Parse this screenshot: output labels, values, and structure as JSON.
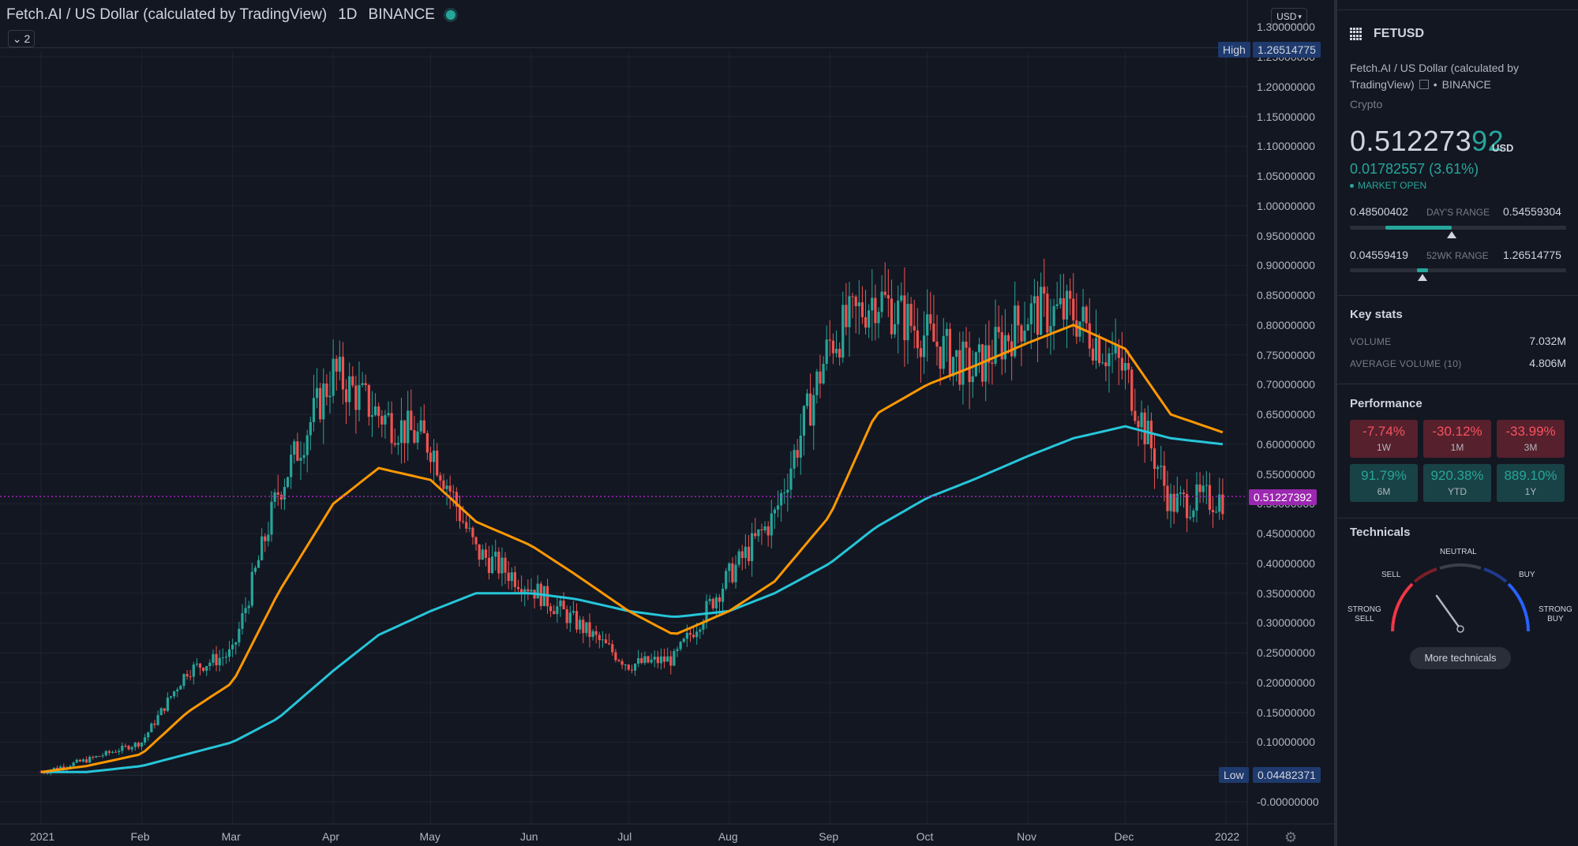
{
  "header": {
    "title": "Fetch.AI / US Dollar (calculated by TradingView)",
    "interval": "1D",
    "exchange": "BINANCE",
    "indicator_count": "2",
    "currency": "USD"
  },
  "price_axis": {
    "ticks": [
      "1.30000000",
      "1.25000000",
      "1.20000000",
      "1.15000000",
      "1.10000000",
      "1.05000000",
      "1.00000000",
      "0.95000000",
      "0.90000000",
      "0.85000000",
      "0.80000000",
      "0.75000000",
      "0.70000000",
      "0.65000000",
      "0.60000000",
      "0.55000000",
      "0.50000000",
      "0.45000000",
      "0.40000000",
      "0.35000000",
      "0.30000000",
      "0.25000000",
      "0.20000000",
      "0.15000000",
      "0.10000000",
      "0.05000000",
      "-0.00000000"
    ],
    "high_label": "High",
    "high_value": "1.26514775",
    "low_label": "Low",
    "low_value": "0.04482371",
    "last_value": "0.51227392"
  },
  "time_axis": {
    "ticks": [
      "2021",
      "Feb",
      "Mar",
      "Apr",
      "May",
      "Jun",
      "Jul",
      "Aug",
      "Sep",
      "Oct",
      "Nov",
      "Dec",
      "2022"
    ]
  },
  "colors": {
    "up": "#26a69a",
    "down": "#ef5350",
    "ma_fast": "#ff9800",
    "ma_slow": "#26c6da",
    "last_price": "#9c27b0"
  },
  "chart_data": {
    "type": "line",
    "title": "Fetch.AI / US Dollar (calculated by TradingView)",
    "x": [
      "2021-01-01",
      "2021-01-15",
      "2021-02-01",
      "2021-02-15",
      "2021-03-01",
      "2021-03-15",
      "2021-04-01",
      "2021-04-15",
      "2021-05-01",
      "2021-05-15",
      "2021-06-01",
      "2021-06-15",
      "2021-07-01",
      "2021-07-15",
      "2021-08-01",
      "2021-08-15",
      "2021-09-01",
      "2021-09-15",
      "2021-10-01",
      "2021-10-15",
      "2021-11-01",
      "2021-11-15",
      "2021-12-01",
      "2021-12-15",
      "2021-12-31"
    ],
    "ylim": [
      -0.05,
      1.3
    ],
    "series": [
      {
        "values": [
          0.05,
          0.07,
          0.1,
          0.22,
          0.25,
          0.52,
          0.72,
          0.65,
          0.6,
          0.42,
          0.36,
          0.3,
          0.23,
          0.24,
          0.38,
          0.48,
          0.77,
          0.85,
          0.78,
          0.72,
          0.82,
          0.82,
          0.72,
          0.5,
          0.51
        ]
      },
      {
        "values": [
          0.05,
          0.06,
          0.08,
          0.15,
          0.2,
          0.35,
          0.5,
          0.56,
          0.54,
          0.47,
          0.43,
          0.38,
          0.32,
          0.28,
          0.32,
          0.37,
          0.48,
          0.65,
          0.7,
          0.73,
          0.77,
          0.8,
          0.76,
          0.65,
          0.62
        ]
      },
      {
        "values": [
          0.05,
          0.05,
          0.06,
          0.08,
          0.1,
          0.14,
          0.22,
          0.28,
          0.32,
          0.35,
          0.35,
          0.34,
          0.32,
          0.31,
          0.32,
          0.35,
          0.4,
          0.46,
          0.51,
          0.54,
          0.58,
          0.61,
          0.63,
          0.61,
          0.6
        ]
      }
    ]
  },
  "panel": {
    "symbol": "FETUSD",
    "desc_line1": "Fetch.AI / US Dollar (calculated by",
    "desc_line2_a": "TradingView)",
    "desc_line2_b": "BINANCE",
    "asset_type": "Crypto",
    "price_head": "0.512273",
    "price_tail": "92",
    "price_unit": "USD",
    "change": "0.01782557 (3.61%)",
    "market_status": "MARKET OPEN",
    "day_range": {
      "low": "0.48500402",
      "title": "DAY'S RANGE",
      "high": "0.54559304",
      "position": 0.47
    },
    "wk_range": {
      "low": "0.04559419",
      "title": "52WK RANGE",
      "high": "1.26514775",
      "position": 0.39
    },
    "key_stats_title": "Key stats",
    "volume_label": "VOLUME",
    "volume_value": "7.032M",
    "avg_volume_label": "AVERAGE VOLUME (10)",
    "avg_volume_value": "4.806M",
    "performance_title": "Performance",
    "performance": [
      {
        "value": "-7.74%",
        "period": "1W"
      },
      {
        "value": "-30.12%",
        "period": "1M"
      },
      {
        "value": "-33.99%",
        "period": "3M"
      },
      {
        "value": "91.79%",
        "period": "6M"
      },
      {
        "value": "920.38%",
        "period": "YTD"
      },
      {
        "value": "889.10%",
        "period": "1Y"
      }
    ],
    "technicals_title": "Technicals",
    "gauge": {
      "neutral": "NEUTRAL",
      "sell": "SELL",
      "buy": "BUY",
      "strong_sell_1": "STRONG",
      "strong_sell_2": "SELL",
      "strong_buy_1": "STRONG",
      "strong_buy_2": "BUY"
    },
    "more_technicals": "More technicals"
  }
}
